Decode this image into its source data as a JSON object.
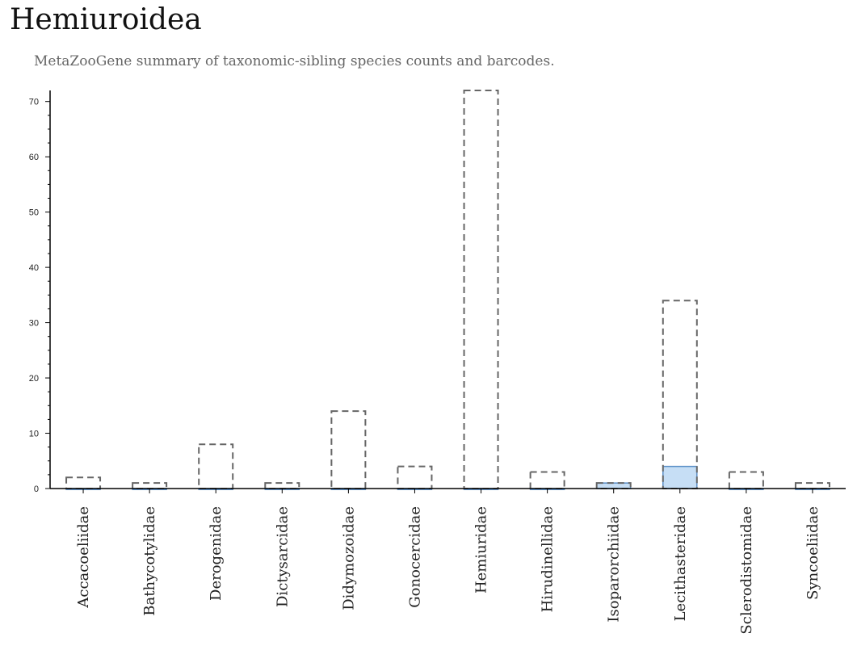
{
  "title": "Hemiuroidea",
  "subtitle": "MetaZooGene summary of taxonomic-sibling species counts and barcodes.",
  "chart_data": {
    "type": "bar",
    "categories": [
      "Accacoeliidae",
      "Bathycotylidae",
      "Derogenidae",
      "Dictysarcidae",
      "Didymozoidae",
      "Gonocercidae",
      "Hemiuridae",
      "Hirudinellidae",
      "Isoparorchiidae",
      "Lecithasteridae",
      "Sclerodistomidae",
      "Syncoeliidae"
    ],
    "series": [
      {
        "style": "dashed-outline",
        "values": [
          2,
          1,
          8,
          1,
          14,
          4,
          72,
          3,
          1,
          34,
          3,
          1
        ]
      },
      {
        "style": "filled",
        "values": [
          0,
          0,
          0,
          0,
          0,
          0,
          0,
          0,
          1,
          4,
          0,
          0
        ]
      }
    ],
    "yticks": [
      0,
      10,
      20,
      30,
      40,
      50,
      60,
      70
    ],
    "ylim": [
      0,
      72
    ],
    "xlabel": "",
    "ylabel": "",
    "colors": {
      "outline": "#666666",
      "fill": "#c6def5",
      "fill_stroke": "#5b8fc7",
      "axis": "#000000"
    }
  }
}
